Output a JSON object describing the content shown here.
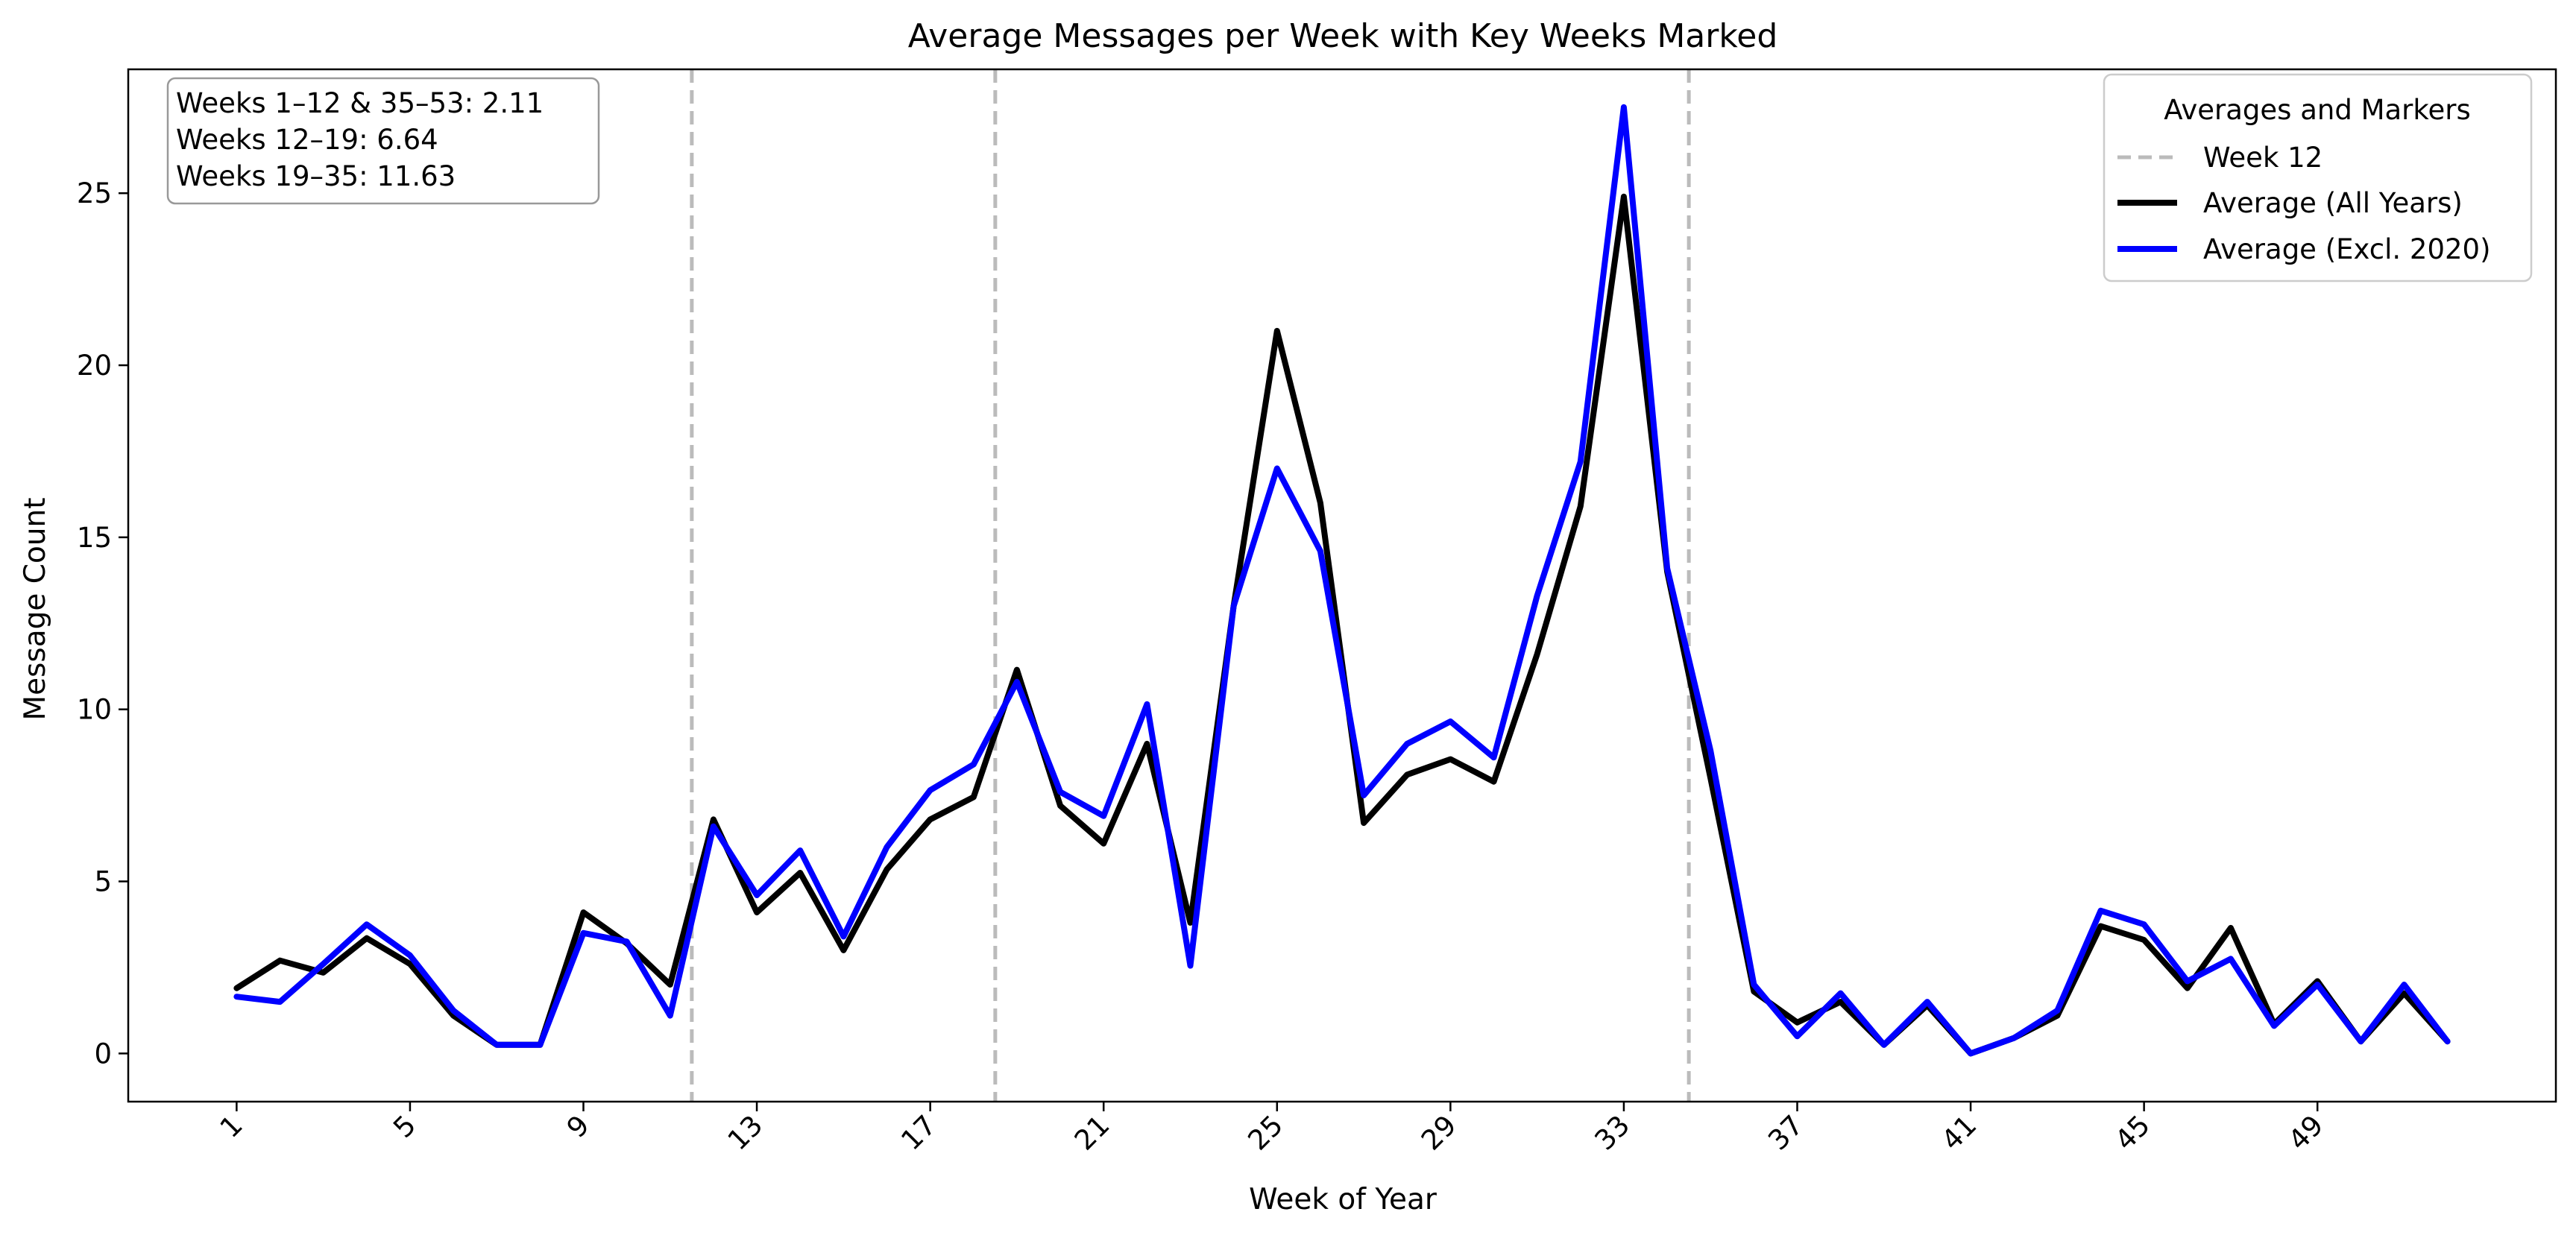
{
  "chart_data": {
    "type": "line",
    "title": "Average Messages per Week with Key Weeks Marked",
    "xlabel": "Week of Year",
    "ylabel": "Message Count",
    "xlim": [
      -1.5,
      54.5
    ],
    "ylim": [
      -1.4,
      28.6
    ],
    "x_ticks": [
      1,
      5,
      9,
      13,
      17,
      21,
      25,
      29,
      33,
      37,
      41,
      45,
      49
    ],
    "y_ticks": [
      0,
      5,
      10,
      15,
      20,
      25
    ],
    "grid": false,
    "legend_position": "top-right",
    "legend_title": "Averages and Markers",
    "x": [
      1,
      2,
      3,
      4,
      5,
      6,
      7,
      8,
      9,
      10,
      11,
      12,
      13,
      14,
      15,
      16,
      17,
      18,
      19,
      20,
      21,
      22,
      23,
      24,
      25,
      26,
      27,
      28,
      29,
      30,
      31,
      32,
      33,
      34,
      35,
      36,
      37,
      38,
      39,
      40,
      41,
      42,
      43,
      44,
      45,
      46,
      47,
      48,
      49,
      50,
      51,
      52
    ],
    "series": [
      {
        "name": "Average (All Years)",
        "color": "#000000",
        "values": [
          1.9,
          2.7,
          2.35,
          3.35,
          2.6,
          1.1,
          0.25,
          0.25,
          4.1,
          3.2,
          2.0,
          6.8,
          4.1,
          5.25,
          3.0,
          5.35,
          6.8,
          7.45,
          11.15,
          7.2,
          6.1,
          9.0,
          3.8,
          13.0,
          21.0,
          16.0,
          6.7,
          8.1,
          8.55,
          7.9,
          11.6,
          15.9,
          24.9,
          14.0,
          8.0,
          1.8,
          0.9,
          1.5,
          0.25,
          1.4,
          0.0,
          0.45,
          1.1,
          3.7,
          3.3,
          1.9,
          3.65,
          0.85,
          2.1,
          0.35,
          1.75,
          0.35
        ]
      },
      {
        "name": "Average (Excl. 2020)",
        "color": "#0000ff",
        "values": [
          1.65,
          1.5,
          2.6,
          3.75,
          2.85,
          1.25,
          0.25,
          0.25,
          3.5,
          3.25,
          1.1,
          6.6,
          4.6,
          5.9,
          3.4,
          6.0,
          7.65,
          8.4,
          10.8,
          7.6,
          6.9,
          10.15,
          2.55,
          13.0,
          17.0,
          14.6,
          7.5,
          9.0,
          9.65,
          8.6,
          13.3,
          17.2,
          27.5,
          14.1,
          8.8,
          2.0,
          0.5,
          1.75,
          0.25,
          1.5,
          0.0,
          0.45,
          1.25,
          4.15,
          3.75,
          2.1,
          2.75,
          0.8,
          2.0,
          0.35,
          2.0,
          0.35
        ]
      }
    ],
    "markers": [
      {
        "name": "Week 12",
        "x": 11.5,
        "color": "#bbbbbb",
        "style": "dashed"
      },
      {
        "x": 18.5,
        "color": "#bbbbbb",
        "style": "dashed"
      },
      {
        "x": 34.5,
        "color": "#bbbbbb",
        "style": "dashed"
      }
    ],
    "annotations": [
      "Weeks 1–12 & 35–53: 2.11",
      "Weeks 12–19: 6.64",
      "Weeks 19–35: 11.63"
    ]
  }
}
